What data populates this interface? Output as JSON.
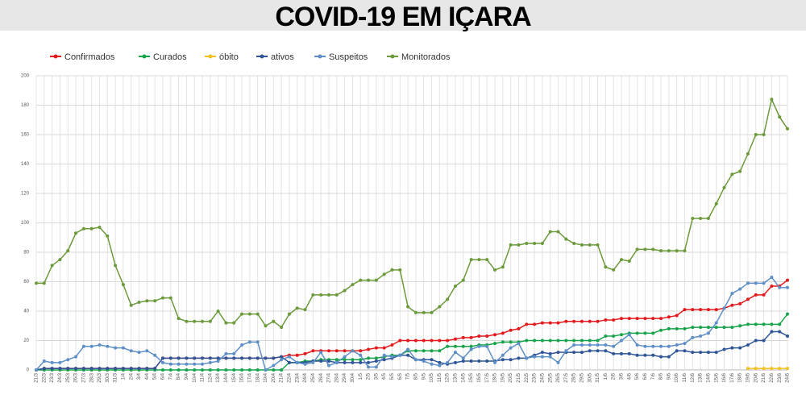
{
  "chart_data": {
    "type": "line",
    "title": "COVID-19 EM IÇARA",
    "categories": [
      "21/3",
      "22/3",
      "23/3",
      "24/3",
      "25/3",
      "26/3",
      "27/3",
      "28/3",
      "29/3",
      "30/3",
      "31/3",
      "1/4",
      "2/4",
      "3/4",
      "4/4",
      "5/4",
      "6/4",
      "7/4",
      "8/4",
      "9/4",
      "10/4",
      "11/4",
      "12/4",
      "13/4",
      "14/4",
      "15/4",
      "16/4",
      "17/4",
      "18/4",
      "19/4",
      "20/4",
      "21/4",
      "22/4",
      "23/4",
      "24/4",
      "25/4",
      "26/4",
      "27/4",
      "28/4",
      "29/4",
      "30/4",
      "1/5",
      "2/5",
      "3/5",
      "4/5",
      "5/5",
      "6/5",
      "7/5",
      "8/5",
      "9/5",
      "10/5",
      "11/5",
      "12/5",
      "13/5",
      "14/5",
      "15/5",
      "16/5",
      "17/5",
      "18/5",
      "19/5",
      "20/5",
      "21/5",
      "22/5",
      "23/5",
      "24/5",
      "25/5",
      "26/5",
      "27/5",
      "28/5",
      "29/5",
      "30/5",
      "31/5",
      "1/6",
      "2/6",
      "3/6",
      "4/6",
      "5/6",
      "6/6",
      "7/6",
      "8/6",
      "9/6",
      "10/6",
      "11/6",
      "12/6",
      "13/6",
      "14/6",
      "15/6",
      "16/6",
      "17/6",
      "18/6",
      "19/6",
      "20/6",
      "21/6",
      "22/6",
      "23/6",
      "24/6"
    ],
    "series": [
      {
        "name": "Confirmados",
        "color": "#e3191c",
        "values": [
          0,
          1,
          1,
          1,
          1,
          1,
          1,
          1,
          1,
          1,
          1,
          1,
          1,
          1,
          1,
          1,
          8,
          8,
          8,
          8,
          8,
          8,
          8,
          8,
          8,
          8,
          8,
          8,
          8,
          8,
          8,
          9,
          10,
          10,
          11,
          13,
          13,
          13,
          13,
          13,
          13,
          13,
          14,
          15,
          15,
          17,
          20,
          20,
          20,
          20,
          20,
          20,
          20,
          21,
          22,
          22,
          23,
          23,
          24,
          25,
          27,
          28,
          31,
          31,
          32,
          32,
          32,
          33,
          33,
          33,
          33,
          33,
          34,
          34,
          35,
          35,
          35,
          35,
          35,
          35,
          36,
          37,
          41,
          41,
          41,
          41,
          41,
          42,
          44,
          45,
          48,
          51,
          51,
          57,
          57,
          61
        ]
      },
      {
        "name": "Curados",
        "color": "#17a34a",
        "values": [
          0,
          0,
          0,
          0,
          0,
          0,
          0,
          0,
          0,
          0,
          0,
          0,
          0,
          0,
          0,
          0,
          0,
          0,
          0,
          0,
          0,
          0,
          0,
          0,
          0,
          0,
          0,
          0,
          0,
          0,
          0,
          0,
          5,
          5,
          6,
          6,
          7,
          7,
          7,
          7,
          7,
          7,
          8,
          8,
          9,
          10,
          10,
          13,
          13,
          13,
          13,
          13,
          16,
          16,
          16,
          16,
          17,
          17,
          18,
          19,
          19,
          19,
          20,
          20,
          20,
          20,
          20,
          20,
          20,
          20,
          20,
          20,
          23,
          23,
          24,
          25,
          25,
          25,
          25,
          27,
          28,
          28,
          28,
          29,
          29,
          29,
          29,
          29,
          29,
          30,
          31,
          31,
          31,
          31,
          31,
          38
        ]
      },
      {
        "name": "óbito",
        "color": "#f4c01e",
        "values": [
          null,
          null,
          null,
          null,
          null,
          null,
          null,
          null,
          null,
          null,
          null,
          null,
          null,
          null,
          null,
          null,
          null,
          null,
          null,
          null,
          null,
          null,
          null,
          null,
          null,
          null,
          null,
          null,
          null,
          null,
          null,
          null,
          null,
          null,
          null,
          null,
          null,
          null,
          null,
          null,
          null,
          null,
          null,
          null,
          null,
          null,
          null,
          null,
          null,
          null,
          null,
          null,
          null,
          null,
          null,
          null,
          null,
          null,
          null,
          null,
          null,
          null,
          null,
          null,
          null,
          null,
          null,
          null,
          null,
          null,
          null,
          null,
          null,
          null,
          null,
          null,
          null,
          null,
          null,
          null,
          null,
          null,
          null,
          null,
          null,
          null,
          null,
          null,
          null,
          null,
          1,
          1,
          1,
          1,
          1,
          1
        ]
      },
      {
        "name": "ativos",
        "color": "#2e5597",
        "values": [
          0,
          1,
          1,
          1,
          1,
          1,
          1,
          1,
          1,
          1,
          1,
          1,
          1,
          1,
          1,
          1,
          8,
          8,
          8,
          8,
          8,
          8,
          8,
          8,
          8,
          8,
          8,
          8,
          8,
          8,
          8,
          9,
          5,
          5,
          5,
          6,
          6,
          6,
          5,
          5,
          5,
          5,
          5,
          6,
          7,
          8,
          10,
          10,
          7,
          7,
          7,
          5,
          4,
          5,
          6,
          6,
          6,
          6,
          6,
          7,
          7,
          8,
          8,
          10,
          12,
          11,
          12,
          12,
          12,
          12,
          13,
          13,
          13,
          11,
          11,
          11,
          10,
          10,
          10,
          9,
          9,
          13,
          13,
          12,
          12,
          12,
          12,
          14,
          15,
          15,
          17,
          20,
          20,
          26,
          26,
          23
        ]
      },
      {
        "name": "Suspeitos",
        "color": "#5e8fc6",
        "values": [
          0,
          6,
          5,
          5,
          7,
          9,
          16,
          16,
          17,
          16,
          15,
          15,
          13,
          12,
          13,
          10,
          5,
          4,
          4,
          4,
          4,
          4,
          5,
          6,
          11,
          11,
          17,
          19,
          19,
          0,
          3,
          7,
          9,
          5,
          4,
          5,
          12,
          3,
          5,
          9,
          13,
          10,
          2,
          2,
          10,
          9,
          10,
          14,
          7,
          6,
          4,
          3,
          5,
          12,
          8,
          14,
          16,
          16,
          5,
          10,
          15,
          18,
          8,
          9,
          9,
          9,
          5,
          13,
          17,
          17,
          17,
          17,
          17,
          16,
          20,
          24,
          17,
          16,
          16,
          16,
          16,
          17,
          18,
          22,
          23,
          25,
          32,
          42,
          52,
          55,
          59,
          59,
          59,
          63,
          56,
          56
        ]
      },
      {
        "name": "Monitorados",
        "color": "#6b9a3a",
        "values": [
          59,
          59,
          71,
          75,
          81,
          93,
          96,
          96,
          97,
          91,
          71,
          58,
          44,
          46,
          47,
          47,
          49,
          49,
          35,
          33,
          33,
          33,
          33,
          40,
          32,
          32,
          38,
          38,
          38,
          30,
          33,
          29,
          38,
          42,
          41,
          51,
          51,
          51,
          51,
          54,
          58,
          61,
          61,
          61,
          65,
          68,
          68,
          43,
          39,
          39,
          39,
          43,
          48,
          57,
          61,
          75,
          75,
          75,
          68,
          70,
          85,
          85,
          86,
          86,
          86,
          94,
          94,
          89,
          86,
          85,
          85,
          85,
          70,
          68,
          75,
          74,
          82,
          82,
          82,
          81,
          81,
          81,
          81,
          103,
          103,
          103,
          113,
          124,
          133,
          135,
          147,
          160,
          160,
          184,
          172,
          164
        ]
      }
    ],
    "ylim": [
      0,
      200
    ],
    "yticks": [
      0,
      20,
      40,
      60,
      80,
      100,
      120,
      140,
      160,
      180,
      200
    ],
    "grid": true,
    "legend": "top-left"
  }
}
